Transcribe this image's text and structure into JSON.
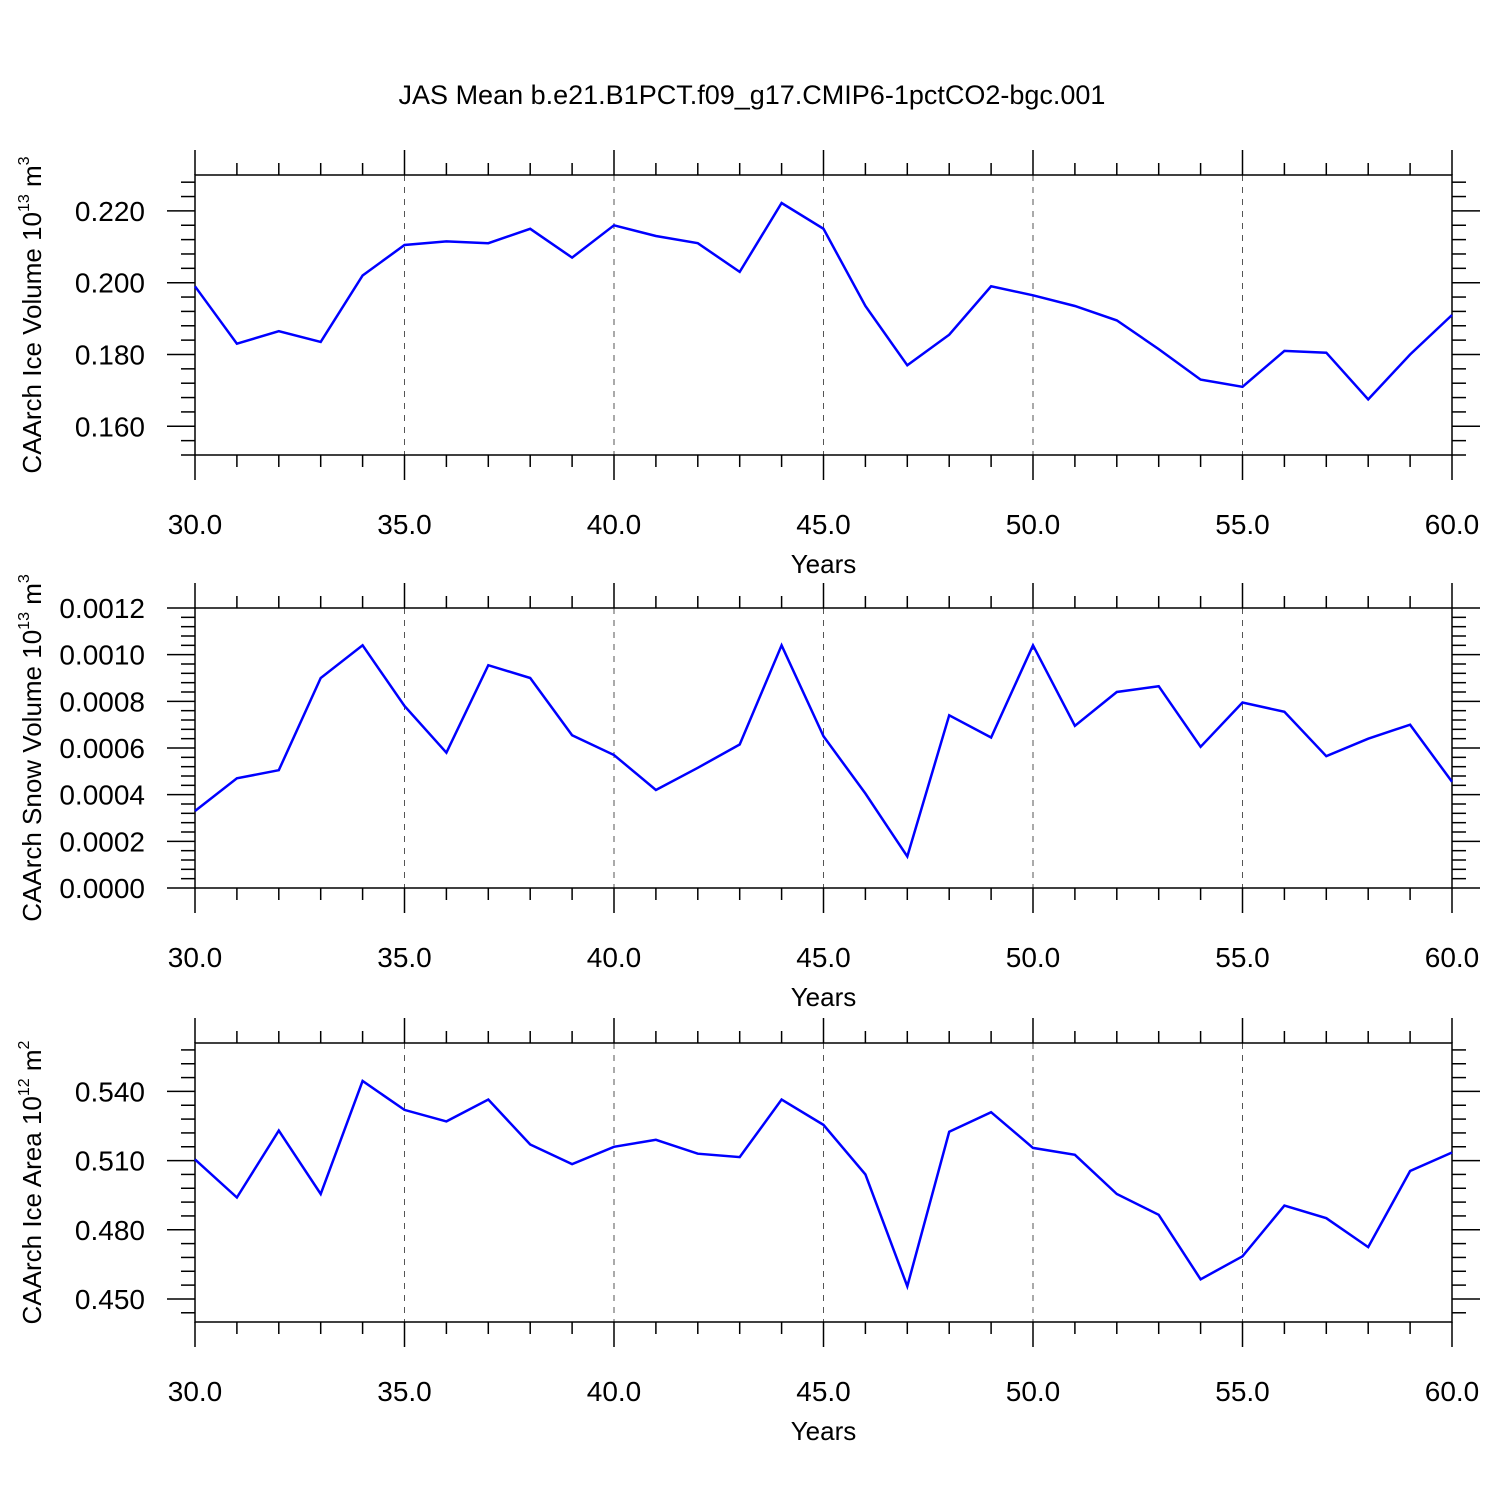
{
  "title": "JAS Mean b.e21.B1PCT.f09_g17.CMIP6-1pctCO2-bgc.001",
  "colors": {
    "line": "#0000ff",
    "axis": "#000000",
    "grid": "#555555"
  },
  "chart_data": [
    {
      "type": "line",
      "xlabel": "Years",
      "ylabel": {
        "text": "CAArch Ice Volume 10",
        "exp": "13",
        "unit": " m",
        "unit_exp": "3"
      },
      "xlim": [
        30,
        60
      ],
      "ylim": [
        0.152,
        0.23
      ],
      "xticks": [
        30,
        35,
        40,
        45,
        50,
        55,
        60
      ],
      "xtick_labels": [
        "30.0",
        "35.0",
        "40.0",
        "45.0",
        "50.0",
        "55.0",
        "60.0"
      ],
      "yticks": [
        0.16,
        0.18,
        0.2,
        0.22
      ],
      "ytick_labels": [
        "0.160",
        "0.180",
        "0.200",
        "0.220"
      ],
      "grid": "vertical dashed at major x ticks",
      "series": [
        {
          "color": "#0000ff",
          "x": [
            30,
            31,
            32,
            33,
            34,
            35,
            36,
            37,
            38,
            39,
            40,
            41,
            42,
            43,
            44,
            45,
            46,
            47,
            48,
            49,
            50,
            51,
            52,
            53,
            54,
            55,
            56,
            57,
            58,
            59,
            60
          ],
          "y": [
            0.199,
            0.183,
            0.1865,
            0.1835,
            0.202,
            0.2105,
            0.2115,
            0.211,
            0.215,
            0.207,
            0.216,
            0.213,
            0.211,
            0.203,
            0.2222,
            0.215,
            0.1935,
            0.177,
            0.1855,
            0.199,
            0.1965,
            0.1935,
            0.1895,
            0.1815,
            0.173,
            0.171,
            0.181,
            0.1805,
            0.1675,
            0.18,
            0.191
          ]
        }
      ]
    },
    {
      "type": "line",
      "xlabel": "Years",
      "ylabel": {
        "text": "CAArch Snow Volume 10",
        "exp": "13",
        "unit": " m",
        "unit_exp": "3"
      },
      "xlim": [
        30,
        60
      ],
      "ylim": [
        0,
        0.0012
      ],
      "xticks": [
        30,
        35,
        40,
        45,
        50,
        55,
        60
      ],
      "xtick_labels": [
        "30.0",
        "35.0",
        "40.0",
        "45.0",
        "50.0",
        "55.0",
        "60.0"
      ],
      "yticks": [
        0,
        0.0002,
        0.0004,
        0.0006,
        0.0008,
        0.001,
        0.0012
      ],
      "ytick_labels": [
        "0.0000",
        "0.0002",
        "0.0004",
        "0.0006",
        "0.0008",
        "0.0010",
        "0.0012"
      ],
      "grid": "vertical dashed at major x ticks",
      "series": [
        {
          "color": "#0000ff",
          "x": [
            30,
            31,
            32,
            33,
            34,
            35,
            36,
            37,
            38,
            39,
            40,
            41,
            42,
            43,
            44,
            45,
            46,
            47,
            48,
            49,
            50,
            51,
            52,
            53,
            54,
            55,
            56,
            57,
            58,
            59,
            60
          ],
          "y": [
            0.00033,
            0.00047,
            0.000505,
            0.0009,
            0.00104,
            0.00078,
            0.00058,
            0.000955,
            0.0009,
            0.000655,
            0.00057,
            0.00042,
            0.000515,
            0.000615,
            0.00104,
            0.00065,
            0.000405,
            0.000135,
            0.00074,
            0.000645,
            0.00104,
            0.000695,
            0.00084,
            0.000865,
            0.000605,
            0.000795,
            0.000755,
            0.000565,
            0.00064,
            0.0007,
            0.000455
          ]
        }
      ]
    },
    {
      "type": "line",
      "xlabel": "Years",
      "ylabel": {
        "text": "CAArch Ice Area 10",
        "exp": "12",
        "unit": " m",
        "unit_exp": "2"
      },
      "xlim": [
        30,
        60
      ],
      "ylim": [
        0.44,
        0.561
      ],
      "xticks": [
        30,
        35,
        40,
        45,
        50,
        55,
        60
      ],
      "xtick_labels": [
        "30.0",
        "35.0",
        "40.0",
        "45.0",
        "50.0",
        "55.0",
        "60.0"
      ],
      "yticks": [
        0.45,
        0.48,
        0.51,
        0.54
      ],
      "ytick_labels": [
        "0.450",
        "0.480",
        "0.510",
        "0.540"
      ],
      "grid": "vertical dashed at major x ticks",
      "series": [
        {
          "color": "#0000ff",
          "x": [
            30,
            31,
            32,
            33,
            34,
            35,
            36,
            37,
            38,
            39,
            40,
            41,
            42,
            43,
            44,
            45,
            46,
            47,
            48,
            49,
            50,
            51,
            52,
            53,
            54,
            55,
            56,
            57,
            58,
            59,
            60
          ],
          "y": [
            0.5105,
            0.494,
            0.523,
            0.4955,
            0.5445,
            0.532,
            0.527,
            0.5365,
            0.517,
            0.5085,
            0.516,
            0.519,
            0.513,
            0.5115,
            0.5365,
            0.5255,
            0.504,
            0.4555,
            0.5225,
            0.531,
            0.5155,
            0.5125,
            0.4955,
            0.4865,
            0.4585,
            0.4685,
            0.4905,
            0.485,
            0.4725,
            0.5055,
            0.5135
          ]
        }
      ]
    }
  ]
}
